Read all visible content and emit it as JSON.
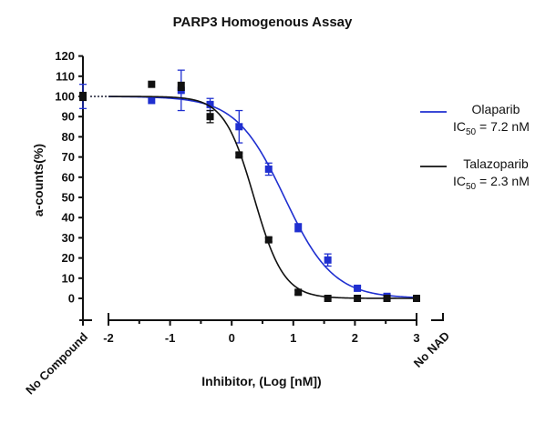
{
  "chart_data": {
    "type": "scatter",
    "title": "PARP3 Homogenous Assay",
    "xlabel": "Inhibitor, (Log [nM])",
    "ylabel": "a-counts(%)",
    "xlim": [
      -2,
      3
    ],
    "ylim": [
      -5,
      120
    ],
    "x_ticks": [
      "-2",
      "-1",
      "0",
      "1",
      "2",
      "3"
    ],
    "y_ticks": [
      "0",
      "10",
      "20",
      "30",
      "40",
      "50",
      "60",
      "70",
      "80",
      "90",
      "100",
      "110",
      "120"
    ],
    "x_extra_labels": {
      "left": "No Compound",
      "right": "No NAD"
    },
    "grid": false,
    "legend_position": "right",
    "series": [
      {
        "name": "Olaparib",
        "ic50_label": "IC",
        "ic50_sub": "50",
        "ic50_value": " = 7.2 nM",
        "color": "#1f2fd0",
        "ic50_log": 0.857,
        "hill": 1.1,
        "x": [
          -1.3,
          -0.82,
          -0.35,
          0.12,
          0.6,
          1.08,
          1.56,
          2.04,
          2.52,
          3.0
        ],
        "y": [
          98,
          103,
          96,
          85,
          64,
          35,
          19,
          5,
          1,
          0
        ],
        "err": [
          0,
          10,
          3,
          8,
          3,
          2,
          3,
          1,
          1,
          0
        ],
        "reference": {
          "y": 100,
          "err": 6
        }
      },
      {
        "name": "Talazoparib",
        "ic50_label": "IC",
        "ic50_sub": "50",
        "ic50_value": " = 2.3 nM",
        "color": "#111111",
        "ic50_log": 0.362,
        "hill": 1.8,
        "x": [
          -1.3,
          -0.82,
          -0.35,
          0.12,
          0.6,
          1.08,
          1.56,
          2.04,
          2.52,
          3.0
        ],
        "y": [
          106,
          105,
          90,
          71,
          29,
          3,
          0,
          0,
          0,
          0
        ],
        "err": [
          0,
          2,
          3,
          1,
          1,
          1,
          0,
          0,
          0,
          0
        ],
        "reference": {
          "y": 100,
          "err": 2
        }
      }
    ]
  }
}
